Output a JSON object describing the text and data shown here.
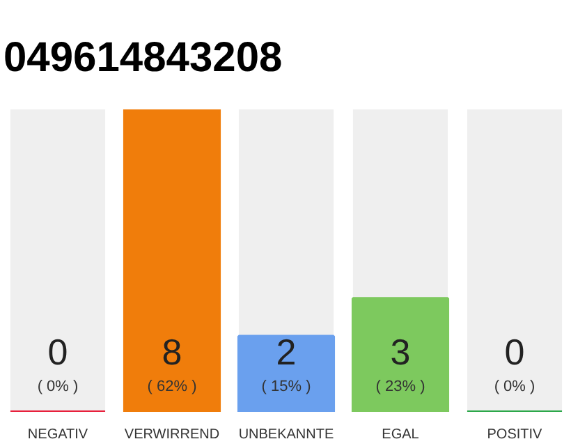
{
  "chart_data": {
    "type": "bar",
    "title": "049614843208",
    "categories": [
      "NEGATIV",
      "VERWIRREND",
      "UNBEKANNTE",
      "EGAL",
      "POSITIV"
    ],
    "values": [
      0,
      8,
      2,
      3,
      0
    ],
    "colors": [
      "#e8203c",
      "#f07d0b",
      "#6aa0ee",
      "#7dc95e",
      "#2ca84a"
    ],
    "value_labels": [
      "0\n( 0% )",
      "8\n( 62% )",
      "2\n( 15% )",
      "3\n( 23% )",
      "0\n( 0% )"
    ],
    "grid": false
  }
}
